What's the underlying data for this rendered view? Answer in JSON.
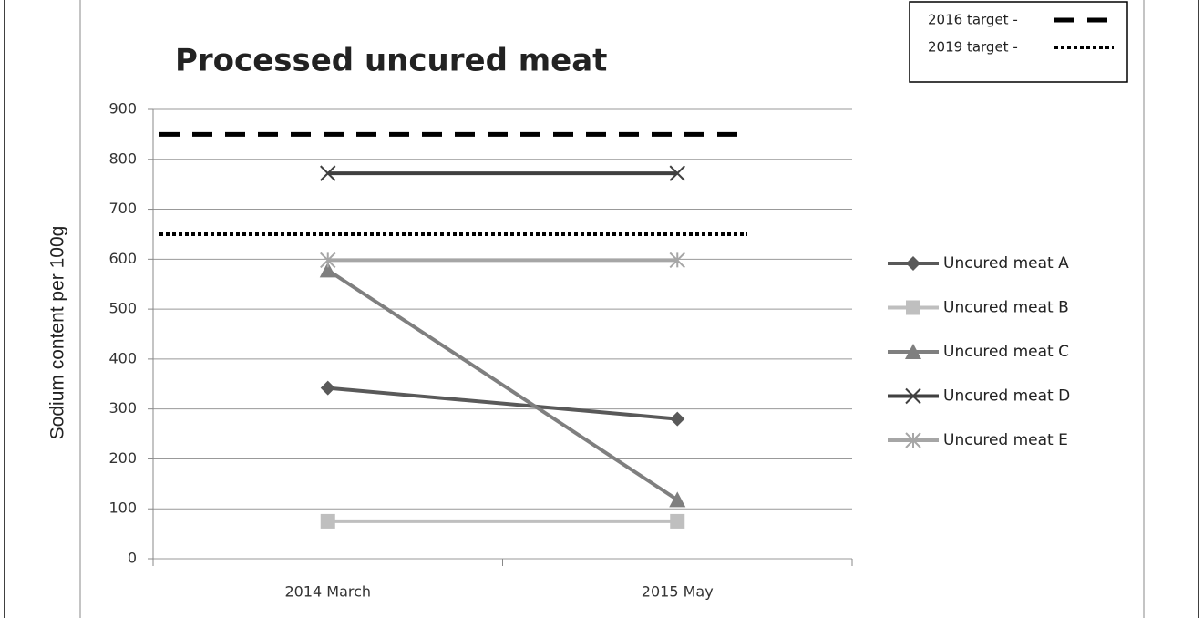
{
  "chart_data": {
    "type": "line",
    "title": "Processed uncured meat",
    "ylabel": "Sodium content per 100g",
    "categories": [
      "2014 March",
      "2015 May"
    ],
    "series": [
      {
        "name": "Uncured meat A",
        "color": "#595959",
        "marker": "diamond",
        "values": [
          342,
          280
        ]
      },
      {
        "name": "Uncured meat B",
        "color": "#bfbfbf",
        "marker": "square",
        "values": [
          75,
          75
        ]
      },
      {
        "name": "Uncured meat C",
        "color": "#7f7f7f",
        "marker": "triangle",
        "values": [
          578,
          118
        ]
      },
      {
        "name": "Uncured meat D",
        "color": "#404040",
        "marker": "x",
        "values": [
          772,
          772
        ]
      },
      {
        "name": "Uncured meat E",
        "color": "#a6a6a6",
        "marker": "star",
        "values": [
          598,
          598
        ]
      }
    ],
    "targets": [
      {
        "name": "2016 target -",
        "value": 850,
        "style": "dashed"
      },
      {
        "name": "2019 target -",
        "value": 650,
        "style": "dotted"
      }
    ],
    "ylim": [
      0,
      900
    ],
    "yticks": [
      0,
      100,
      200,
      300,
      400,
      500,
      600,
      700,
      800,
      900
    ],
    "grid": true
  }
}
